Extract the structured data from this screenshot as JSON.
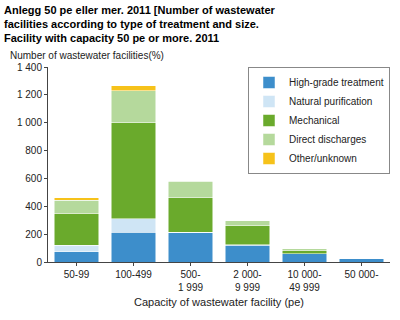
{
  "chart_data": {
    "type": "bar",
    "stacked": true,
    "title": "Anlegg 50 pe eller mer. 2011 [Number of wastewater facilities according to type of treatment and size. Facility with capacity 50 pe or more. 2011",
    "y_label": "Number of wastewater facilities(%)",
    "x_label": "Capacity of wastewater facility (pe)",
    "categories": [
      "50-99",
      "100-499",
      "500-1 999",
      "2 000-9 999",
      "10 000-49 999",
      "50 000-"
    ],
    "series": [
      {
        "name": "High-grade treatment",
        "color": "#3d8ecb",
        "values": [
          75,
          215,
          210,
          120,
          60,
          25
        ]
      },
      {
        "name": "Natural purification",
        "color": "#cfe5f5",
        "values": [
          45,
          95,
          5,
          5,
          0,
          0
        ]
      },
      {
        "name": "Mechanical",
        "color": "#6aaa2c",
        "values": [
          230,
          690,
          245,
          135,
          25,
          0
        ]
      },
      {
        "name": "Direct discharges",
        "color": "#b5d99c",
        "values": [
          95,
          230,
          120,
          35,
          10,
          0
        ]
      },
      {
        "name": "Other/unknown",
        "color": "#f6c21a",
        "values": [
          15,
          35,
          5,
          0,
          0,
          0
        ]
      }
    ],
    "ylim": [
      0,
      1400
    ],
    "yticks": [
      0,
      200,
      400,
      600,
      800,
      {
        "value": 1000,
        "label": "1 000"
      },
      {
        "value": 1200,
        "label": "1 200"
      },
      {
        "value": 1400,
        "label": "1 400"
      }
    ],
    "grid": false,
    "legend": "top right"
  }
}
